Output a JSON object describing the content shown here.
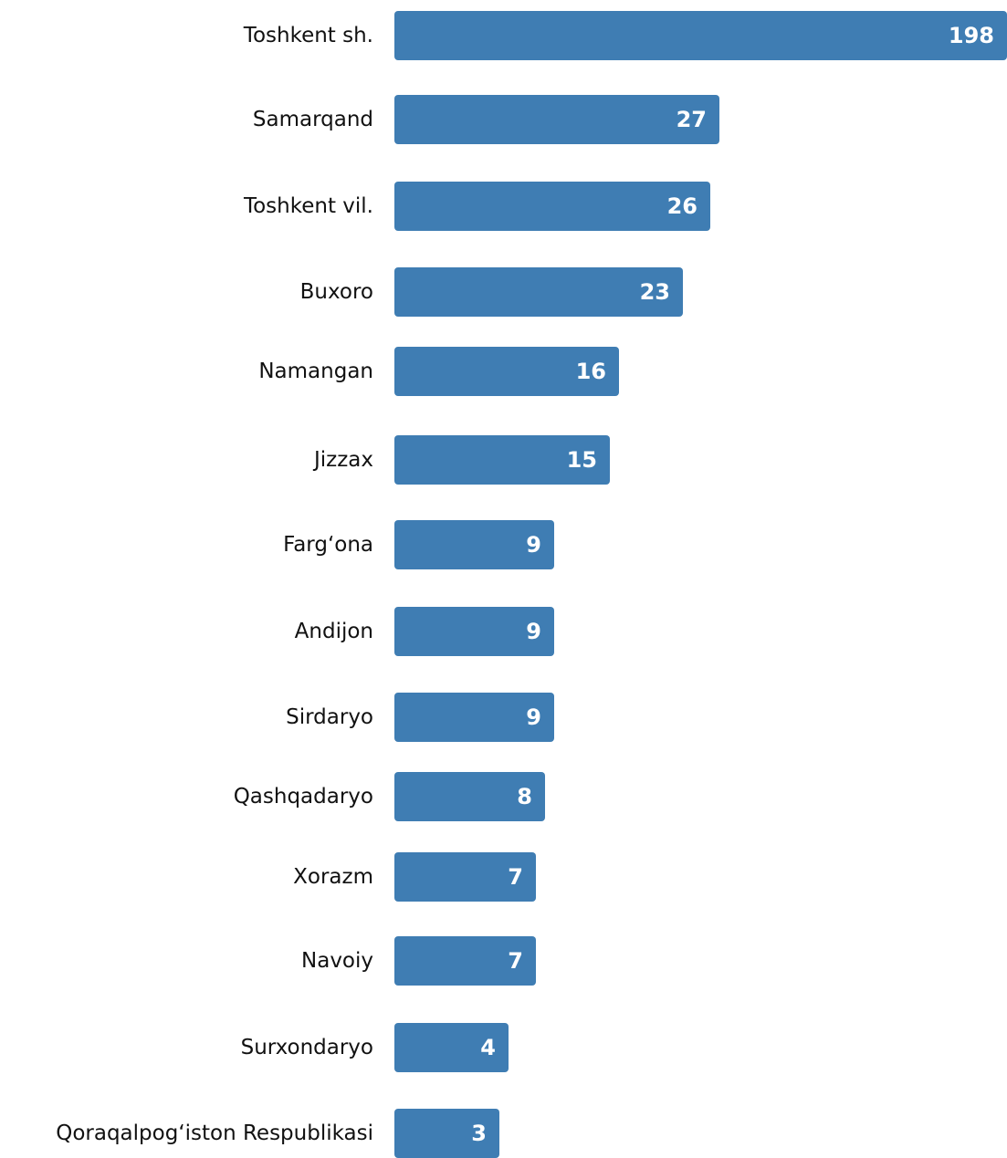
{
  "chart_data": {
    "type": "bar",
    "orientation": "horizontal",
    "categories": [
      "Toshkent sh.",
      "Samarqand",
      "Toshkent vil.",
      "Buxoro",
      "Namangan",
      "Jizzax",
      "Farg‘ona",
      "Andijon",
      "Sirdaryo",
      "Qashqadaryo",
      "Xorazm",
      "Navoiy",
      "Surxondaryo",
      "Qoraqalpog‘iston Respublikasi"
    ],
    "values": [
      198,
      27,
      26,
      23,
      16,
      15,
      9,
      9,
      9,
      8,
      7,
      7,
      4,
      3
    ],
    "value_labels": [
      "198",
      "27",
      "26",
      "23",
      "16",
      "15",
      "9",
      "9",
      "9",
      "8",
      "7",
      "7",
      "4",
      "3"
    ],
    "title": "",
    "xlabel": "",
    "ylabel": "",
    "grid": false,
    "bar_color": "#3f7db3",
    "label_color": "#111111",
    "value_label_color": "#ffffff"
  }
}
